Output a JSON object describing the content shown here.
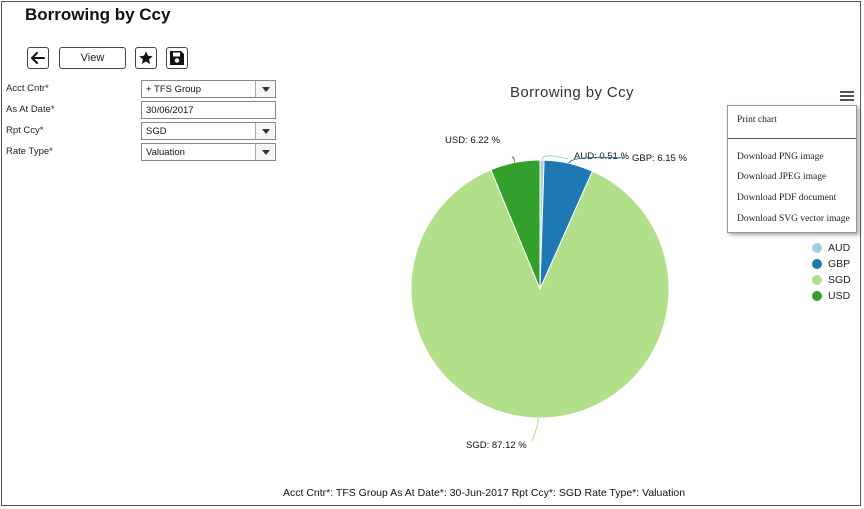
{
  "page": {
    "title": "Borrowing by Ccy"
  },
  "toolbar": {
    "view_label": "View",
    "icons": [
      "back-arrow-icon",
      "star-icon",
      "save-icon"
    ]
  },
  "form": {
    "acct_cntr": {
      "label": "Acct Cntr*",
      "value": "+ TFS Group"
    },
    "as_at_date": {
      "label": "As At Date*",
      "value": "30/06/2017"
    },
    "rpt_ccy": {
      "label": "Rpt Ccy*",
      "value": "SGD"
    },
    "rate_type": {
      "label": "Rate Type*",
      "value": "Valuation"
    }
  },
  "export_menu": {
    "print": "Print chart",
    "png": "Download PNG image",
    "jpeg": "Download JPEG image",
    "pdf": "Download PDF document",
    "svg": "Download SVG vector image"
  },
  "footer": {
    "text": "Acct Cntr*: TFS Group As At Date*: 30-Jun-2017 Rpt Ccy*: SGD Rate Type*: Valuation"
  },
  "chart_data": {
    "type": "pie",
    "title": "Borrowing by Ccy",
    "legend_position": "right",
    "slices": [
      {
        "name": "AUD",
        "value": 0.51,
        "label": "AUD: 0.51 %",
        "color": "#a6cee3"
      },
      {
        "name": "GBP",
        "value": 6.15,
        "label": "GBP: 6.15 %",
        "color": "#1f78b4"
      },
      {
        "name": "SGD",
        "value": 87.12,
        "label": "SGD: 87.12 %",
        "color": "#b2df8a"
      },
      {
        "name": "USD",
        "value": 6.22,
        "label": "USD: 6.22 %",
        "color": "#33a02c"
      }
    ]
  }
}
